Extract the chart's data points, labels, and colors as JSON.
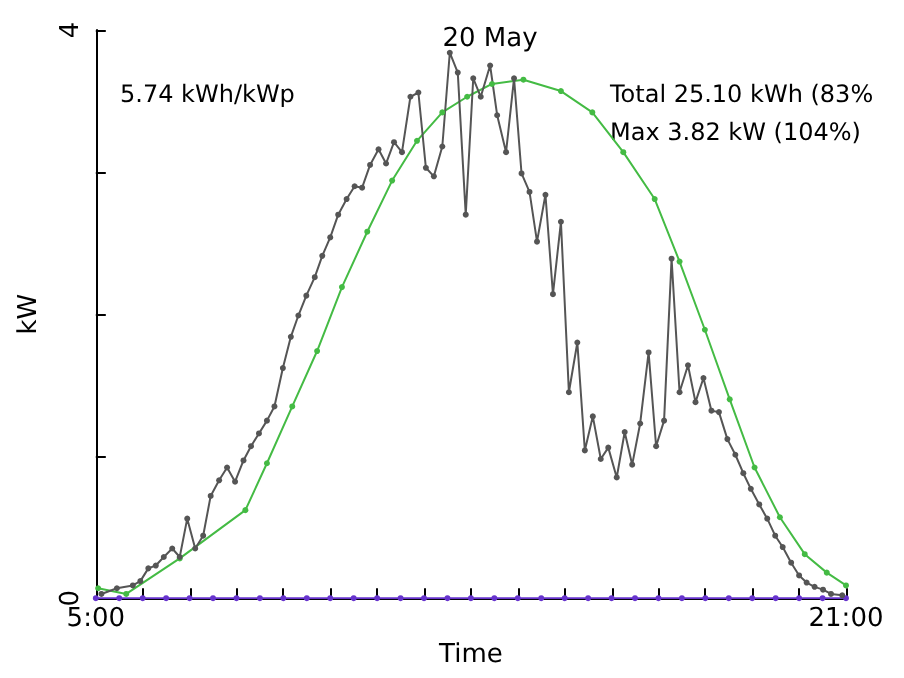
{
  "chart_data": {
    "type": "line",
    "title": "20 May",
    "xlabel": "Time",
    "ylabel": "kW",
    "annotations": [
      "5.74 kWh/kWp",
      "Total 25.10 kWh (83%",
      "Max 3.82 kW (104%)"
    ],
    "xlim": [
      5,
      21
    ],
    "ylim": [
      0,
      4
    ],
    "xticks": [
      {
        "value": 5,
        "label": "5:00"
      },
      {
        "value": 6,
        "label": null
      },
      {
        "value": 7,
        "label": null
      },
      {
        "value": 8,
        "label": null
      },
      {
        "value": 9,
        "label": null
      },
      {
        "value": 10,
        "label": null
      },
      {
        "value": 11,
        "label": null
      },
      {
        "value": 12,
        "label": null
      },
      {
        "value": 13,
        "label": null
      },
      {
        "value": 14,
        "label": null
      },
      {
        "value": 15,
        "label": null
      },
      {
        "value": 16,
        "label": null
      },
      {
        "value": 17,
        "label": null
      },
      {
        "value": 18,
        "label": null
      },
      {
        "value": 19,
        "label": null
      },
      {
        "value": 20,
        "label": null
      },
      {
        "value": 21,
        "label": "21:00"
      }
    ],
    "yticks": [
      0,
      {
        "value": 1,
        "label": null
      },
      {
        "value": 2,
        "label": null
      },
      {
        "value": 3,
        "label": null
      },
      4
    ],
    "grid": false,
    "marker": "circle",
    "line_style": "solid",
    "series": [
      {
        "color": "#6633cc",
        "x": [
          5,
          5.5,
          6,
          6.5,
          7,
          7.5,
          8,
          8.5,
          9,
          9.5,
          10,
          10.5,
          11,
          11.5,
          12,
          12.5,
          13,
          13.5,
          14,
          14.5,
          15,
          15.5,
          16,
          16.5,
          17,
          17.5,
          18,
          18.5,
          19,
          19.5,
          20,
          20.5,
          21
        ],
        "values": [
          0,
          0,
          0,
          0,
          0,
          0,
          0,
          0,
          0,
          0,
          0,
          0,
          0,
          0,
          0,
          0,
          0,
          0,
          0,
          0,
          0,
          0,
          0,
          0,
          0,
          0,
          0,
          0,
          0,
          0,
          0,
          0,
          0
        ]
      },
      {
        "color": "#44bb44",
        "x": [
          5.05,
          5.65,
          6.79,
          8.19,
          8.65,
          9.19,
          9.72,
          10.25,
          10.79,
          11.32,
          11.85,
          12.39,
          12.92,
          13.45,
          14.12,
          14.92,
          15.59,
          16.25,
          16.92,
          17.45,
          17.99,
          18.52,
          19.05,
          19.59,
          20.12,
          20.59,
          21
        ],
        "values": [
          0.07,
          0.03,
          0.28,
          0.62,
          0.95,
          1.35,
          1.74,
          2.19,
          2.58,
          2.94,
          3.22,
          3.42,
          3.53,
          3.62,
          3.65,
          3.57,
          3.42,
          3.14,
          2.81,
          2.37,
          1.89,
          1.4,
          0.92,
          0.57,
          0.31,
          0.18,
          0.09
        ]
      },
      {
        "color": "#555555",
        "x": [
          5.12,
          5.45,
          5.79,
          5.95,
          6.12,
          6.28,
          6.45,
          6.63,
          6.79,
          6.95,
          7.12,
          7.29,
          7.45,
          7.63,
          7.8,
          7.97,
          8.15,
          8.31,
          8.48,
          8.65,
          8.81,
          8.99,
          9.16,
          9.32,
          9.49,
          9.67,
          9.83,
          10,
          10.17,
          10.35,
          10.52,
          10.68,
          10.85,
          11.03,
          11.19,
          11.36,
          11.53,
          11.71,
          11.88,
          12.04,
          12.21,
          12.39,
          12.55,
          12.72,
          12.89,
          13.05,
          13.21,
          13.41,
          13.56,
          13.75,
          13.92,
          14.08,
          14.25,
          14.41,
          14.59,
          14.75,
          14.92,
          15.09,
          15.27,
          15.43,
          15.6,
          15.77,
          15.93,
          16.11,
          16.28,
          16.44,
          16.61,
          16.79,
          16.95,
          17.12,
          17.28,
          17.45,
          17.63,
          17.79,
          17.96,
          18.13,
          18.29,
          18.47,
          18.64,
          18.81,
          18.97,
          19.15,
          19.32,
          19.49,
          19.65,
          19.83,
          20,
          20.16,
          20.33,
          20.51,
          20.68,
          20.92
        ],
        "values": [
          0.03,
          0.07,
          0.09,
          0.12,
          0.21,
          0.23,
          0.29,
          0.35,
          0.29,
          0.56,
          0.35,
          0.44,
          0.72,
          0.83,
          0.92,
          0.82,
          0.97,
          1.07,
          1.16,
          1.25,
          1.35,
          1.62,
          1.84,
          1.99,
          2.13,
          2.26,
          2.41,
          2.54,
          2.7,
          2.81,
          2.9,
          2.89,
          3.05,
          3.16,
          3.06,
          3.21,
          3.14,
          3.53,
          3.56,
          3.03,
          2.97,
          3.18,
          3.84,
          3.7,
          2.7,
          3.66,
          3.53,
          3.75,
          3.4,
          3.14,
          3.66,
          2.99,
          2.86,
          2.51,
          2.84,
          2.14,
          2.65,
          1.45,
          1.8,
          1.04,
          1.28,
          0.98,
          1.06,
          0.85,
          1.17,
          0.94,
          1.23,
          1.73,
          1.07,
          1.25,
          2.39,
          1.45,
          1.64,
          1.38,
          1.55,
          1.32,
          1.31,
          1.12,
          1.01,
          0.88,
          0.77,
          0.66,
          0.56,
          0.44,
          0.36,
          0.25,
          0.16,
          0.11,
          0.08,
          0.06,
          0.03,
          0.02
        ]
      }
    ]
  }
}
